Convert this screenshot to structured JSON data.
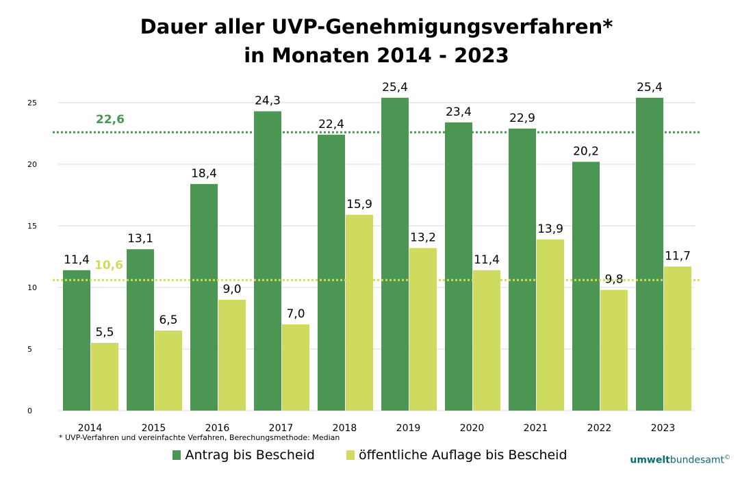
{
  "chart_data": {
    "type": "bar",
    "title_line1": "Dauer aller UVP-Genehmigungsverfahren*",
    "title_line2": "in Monaten 2014 - 2023",
    "categories": [
      "2014",
      "2015",
      "2016",
      "2017",
      "2018",
      "2019",
      "2020",
      "2021",
      "2022",
      "2023"
    ],
    "series": [
      {
        "name": "Antrag bis Bescheid",
        "color": "#4b9652",
        "values": [
          11.4,
          13.1,
          18.4,
          24.3,
          22.4,
          25.4,
          23.4,
          22.9,
          20.2,
          25.4
        ],
        "labels": [
          "11,4",
          "13,1",
          "18,4",
          "24,3",
          "22,4",
          "25,4",
          "23,4",
          "22,9",
          "20,2",
          "25,4"
        ]
      },
      {
        "name": "öffentliche Auflage bis Bescheid",
        "color": "#cfdb5e",
        "values": [
          5.5,
          6.5,
          9.0,
          7.0,
          15.9,
          13.2,
          11.4,
          13.9,
          9.8,
          11.7
        ],
        "labels": [
          "5,5",
          "6,5",
          "9,0",
          "7,0",
          "15,9",
          "13,2",
          "11,4",
          "13,9",
          "9,8",
          "11,7"
        ]
      }
    ],
    "reference_lines": [
      {
        "value": 22.6,
        "label": "22,6",
        "color": "#4b9652",
        "style": "dotted"
      },
      {
        "value": 10.6,
        "label": "10,6",
        "color": "#cfdb5e",
        "style": "dotted"
      }
    ],
    "ylim": [
      0,
      25
    ],
    "yticks": [
      0,
      5,
      10,
      15,
      20,
      25
    ],
    "grid": true,
    "legend_position": "bottom",
    "footnote": "* UVP-Verfahren und vereinfachte Verfahren, Berechungsmethode: Median"
  },
  "logo": {
    "part1": "umwelt",
    "part2": "bundesamt",
    "mark": "©"
  }
}
